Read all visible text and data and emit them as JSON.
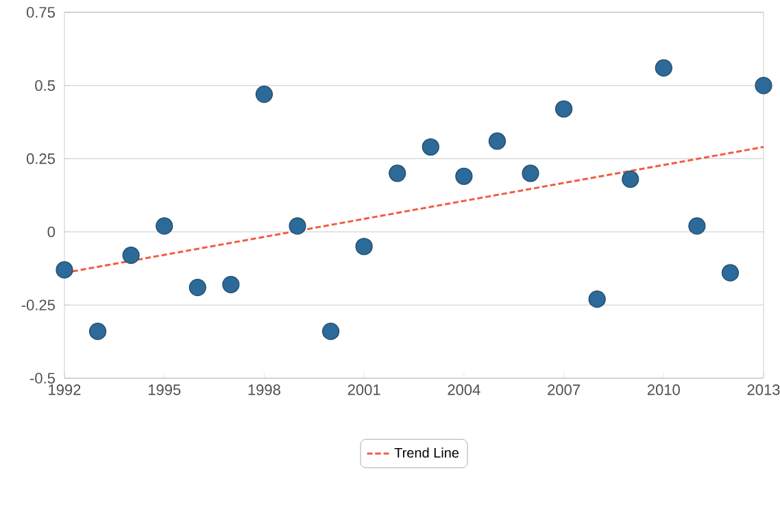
{
  "chart_data": {
    "type": "scatter",
    "xlim": [
      1992,
      2013
    ],
    "xticks": [
      1992,
      1995,
      1998,
      2001,
      2004,
      2007,
      2010,
      2013
    ],
    "ylim": [
      -0.5,
      0.75
    ],
    "yticks": [
      -0.5,
      -0.25,
      0,
      0.25,
      0.5,
      0.75
    ],
    "grid": "y",
    "legend": "bottom",
    "series": [
      {
        "marker": "circle",
        "color": "#2b6a99",
        "x": [
          1992,
          1993,
          1994,
          1995,
          1996,
          1997,
          1998,
          1999,
          2000,
          2001,
          2002,
          2003,
          2004,
          2005,
          2006,
          2007,
          2008,
          2009,
          2010,
          2011,
          2012,
          2013
        ],
        "values": [
          -0.13,
          -0.34,
          -0.08,
          0.02,
          -0.19,
          -0.18,
          0.47,
          0.02,
          -0.34,
          -0.05,
          0.2,
          0.29,
          0.19,
          0.31,
          0.2,
          0.42,
          -0.23,
          0.18,
          0.56,
          0.02,
          -0.14,
          0.5
        ]
      },
      {
        "type": "line",
        "name": "Trend Line",
        "marker": "none",
        "line_style": "dashed",
        "color": "#f25c45",
        "x": [
          1992,
          2013
        ],
        "values": [
          -0.14,
          0.29
        ]
      }
    ]
  }
}
